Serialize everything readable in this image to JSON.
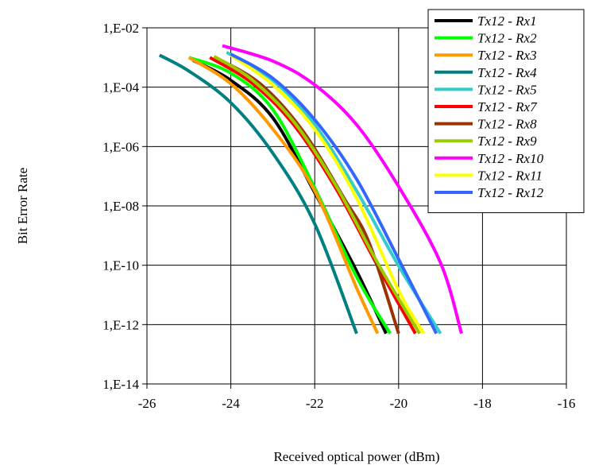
{
  "chart_data": {
    "type": "line",
    "title": "",
    "xlabel": "Received optical power (dBm)",
    "ylabel": "Bit Error Rate",
    "xlim": [
      -26,
      -16
    ],
    "ylim_exponent": [
      -14,
      -2
    ],
    "y_scale": "log",
    "grid": true,
    "legend_position": "top-right",
    "x_ticks": [
      "-26",
      "-24",
      "-22",
      "-20",
      "-18",
      "-16"
    ],
    "y_ticks": [
      "1,E-02",
      "1,E-04",
      "1,E-06",
      "1,E-08",
      "1,E-10",
      "1,E-12",
      "1,E-14"
    ],
    "series": [
      {
        "name": "Tx12 - Rx1",
        "color": "#000000",
        "x": [
          -24.9,
          -24.0,
          -23.0,
          -22.0,
          -21.0,
          -20.3
        ],
        "y": [
          0.0008,
          0.00017,
          9.3e-06,
          2.8e-08,
          6.3e-11,
          5e-13
        ]
      },
      {
        "name": "Tx12 - Rx2",
        "color": "#00ff00",
        "x": [
          -25.0,
          -24.0,
          -23.0,
          -22.0,
          -21.0,
          -20.2
        ],
        "y": [
          0.001,
          0.0003,
          1.77e-05,
          4e-08,
          4e-11,
          5e-13
        ]
      },
      {
        "name": "Tx12 - Rx3",
        "color": "#ff9900",
        "x": [
          -25.0,
          -24.0,
          -23.0,
          -22.0,
          -21.0,
          -20.5
        ],
        "y": [
          0.001,
          0.00013,
          3.9e-06,
          3.2e-08,
          1.7e-11,
          5e-13
        ]
      },
      {
        "name": "Tx12 - Rx4",
        "color": "#008080",
        "x": [
          -25.7,
          -25.0,
          -24.0,
          -23.0,
          -22.0,
          -21.0
        ],
        "y": [
          0.0012,
          0.00035,
          3e-05,
          6e-07,
          2.5e-09,
          5e-13
        ]
      },
      {
        "name": "Tx12 - Rx5",
        "color": "#33cccc",
        "x": [
          -24.1,
          -23.0,
          -22.0,
          -21.0,
          -20.0,
          -19.0
        ],
        "y": [
          0.0015,
          0.00017,
          5.4e-06,
          3.2e-08,
          9.5e-11,
          5e-13
        ]
      },
      {
        "name": "Tx12 - Rx7",
        "color": "#ff0000",
        "x": [
          -24.5,
          -23.5,
          -22.5,
          -21.5,
          -20.5,
          -19.6
        ],
        "y": [
          0.001,
          0.00014,
          5.4e-06,
          4e-08,
          9.5e-11,
          5e-13
        ]
      },
      {
        "name": "Tx12 - Rx8",
        "color": "#993300",
        "x": [
          -24.3,
          -23.3,
          -22.3,
          -21.3,
          -20.7,
          -20.0
        ],
        "y": [
          0.0009,
          0.00013,
          3.6e-06,
          1.8e-08,
          5.6e-10,
          5e-13
        ]
      },
      {
        "name": "Tx12 - Rx9",
        "color": "#99cc00",
        "x": [
          -24.4,
          -23.5,
          -22.5,
          -21.5,
          -20.5,
          -19.5
        ],
        "y": [
          0.0011,
          0.00018,
          6.9e-06,
          5e-08,
          1.2e-10,
          5e-13
        ]
      },
      {
        "name": "Tx12 - Rx10",
        "color": "#ff00ff",
        "x": [
          -24.2,
          -23.0,
          -22.0,
          -21.0,
          -20.0,
          -19.0,
          -18.5
        ],
        "y": [
          0.0025,
          0.00076,
          0.00012,
          5.4e-06,
          4.5e-08,
          1.2e-10,
          5e-13
        ]
      },
      {
        "name": "Tx12 - Rx11",
        "color": "#ffff00",
        "x": [
          -24.0,
          -23.0,
          -22.0,
          -21.0,
          -20.0,
          -19.4
        ],
        "y": [
          0.0012,
          0.00012,
          3.8e-06,
          1.8e-08,
          1.4e-11,
          5e-13
        ]
      },
      {
        "name": "Tx12 - Rx12",
        "color": "#3366ff",
        "x": [
          -24.0,
          -23.0,
          -22.0,
          -21.0,
          -20.0,
          -19.1
        ],
        "y": [
          0.0013,
          0.0002,
          8e-06,
          7.9e-08,
          1.6e-10,
          5e-13
        ]
      }
    ]
  }
}
